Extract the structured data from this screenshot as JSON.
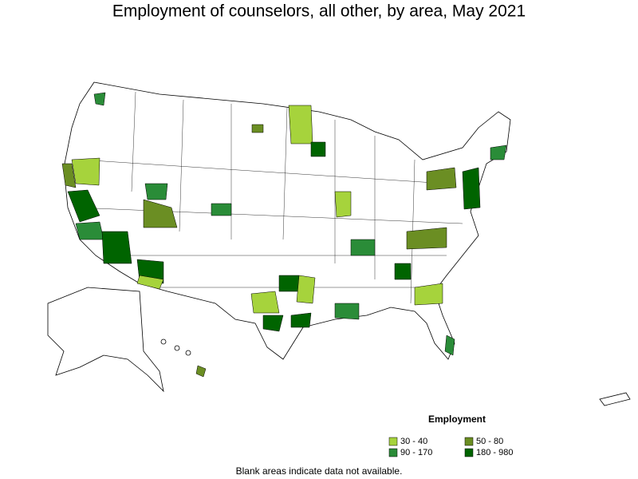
{
  "title": "Employment of counselors, all other, by area, May 2021",
  "legend": {
    "title": "Employment",
    "items": [
      {
        "label": "30 - 40",
        "color": "#a6d33c"
      },
      {
        "label": "50 - 80",
        "color": "#6b8e23"
      },
      {
        "label": "90 - 170",
        "color": "#2a8c38"
      },
      {
        "label": "180 - 980",
        "color": "#006400"
      }
    ]
  },
  "note": "Blank areas indicate data not available."
}
